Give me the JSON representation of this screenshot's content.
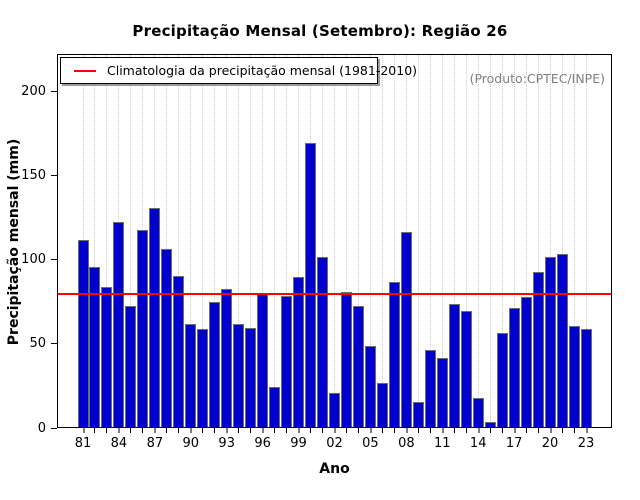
{
  "title": "Precipitação Mensal (Setembro): Região 26",
  "annotation": "(Produto:CPTEC/INPE)",
  "legend": {
    "label": "Climatologia da precipitação mensal (1981-2010)"
  },
  "colors": {
    "bar_fill": "#0000CC",
    "bar_border": "#6e6e6e",
    "climatology_line": "#FF0000",
    "gridline": "#c8c8c8",
    "annotation_text": "#808080"
  },
  "chart_data": {
    "type": "bar",
    "title": "Precipitação Mensal (Setembro): Região 26",
    "xlabel": "Ano",
    "ylabel": "Precipitação mensal (mm)",
    "years": [
      1981,
      1982,
      1983,
      1984,
      1985,
      1986,
      1987,
      1988,
      1989,
      1990,
      1991,
      1992,
      1993,
      1994,
      1995,
      1996,
      1997,
      1998,
      1999,
      2000,
      2001,
      2002,
      2003,
      2004,
      2005,
      2006,
      2007,
      2008,
      2009,
      2010,
      2011,
      2012,
      2013,
      2014,
      2015,
      2016,
      2017,
      2018,
      2019,
      2020,
      2021,
      2022,
      2023
    ],
    "values": [
      111,
      95,
      83,
      122,
      72,
      117,
      130,
      106,
      90,
      61,
      58,
      74,
      82,
      61,
      59,
      79,
      24,
      78,
      89,
      169,
      101,
      20,
      80,
      72,
      48,
      26,
      86,
      116,
      15,
      46,
      41,
      73,
      69,
      17,
      3,
      56,
      71,
      77,
      92,
      101,
      103,
      60,
      58
    ],
    "climatology_value": 79.3,
    "climatology_label": "Climatologia da precipitação mensal (1981-2010)",
    "ylim": [
      0,
      221
    ],
    "yticks": [
      0,
      50,
      100,
      150,
      200
    ],
    "xtick_label_every": 3,
    "xtick_labels": [
      "81",
      "84",
      "87",
      "90",
      "93",
      "96",
      "99",
      "02",
      "05",
      "08",
      "11",
      "14",
      "17",
      "20",
      "23"
    ],
    "legend_position": "top-left",
    "grid": "vertical-dotted",
    "annotation": "(Produto:CPTEC/INPE)"
  }
}
